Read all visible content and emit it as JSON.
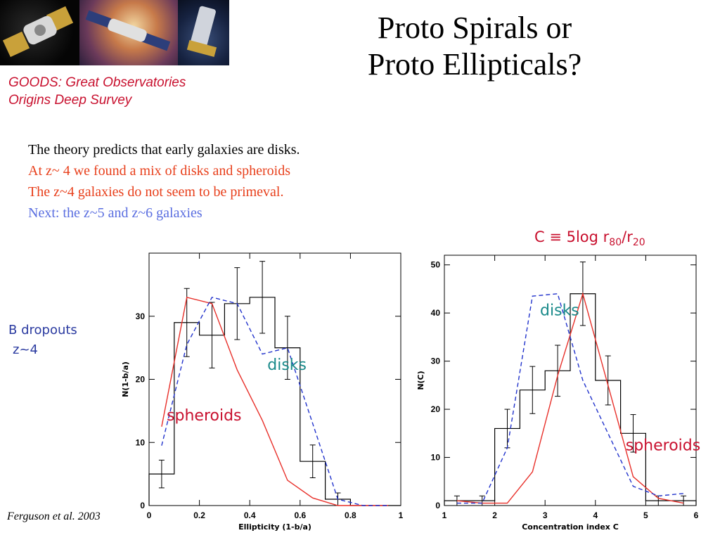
{
  "header": {
    "title_line1": "Proto Spirals or",
    "title_line2": "Proto Ellipticals?",
    "subtitle_line1": "GOODS: Great Observatories",
    "subtitle_line2": "Origins Deep Survey"
  },
  "bullets": {
    "line1": "The theory predicts that early galaxies are disks.",
    "line2": "At z~ 4 we found a mix of disks and spheroids",
    "line3": "The z~4 galaxies do not seem to be primeval.",
    "line4": "Next: the z~5 and z~6 galaxies"
  },
  "formula": {
    "prefix": "C ≡ 5log r",
    "sub1": "80",
    "mid": "/r",
    "sub2": "20"
  },
  "side_label": {
    "line1": "B dropouts",
    "line2": "z~4"
  },
  "citation": "Ferguson et al. 2003",
  "colors": {
    "histogram": "#000000",
    "spheroids": "#e8302a",
    "disks": "#2233cc",
    "annotation_disks": "#1a8a8a",
    "annotation_spheroids": "#c8102e"
  },
  "chart_data": [
    {
      "type": "histogram",
      "xlabel": "Ellipticity (1-b/a)",
      "ylabel": "N(1-b/a)",
      "xlim": [
        0,
        1
      ],
      "ylim": [
        0,
        40
      ],
      "x_ticks": [
        0,
        0.2,
        0.4,
        0.6,
        0.8,
        1
      ],
      "x_tick_labels": [
        "0",
        "0.2",
        "0.4",
        "0.6",
        "0.8",
        "1"
      ],
      "y_ticks": [
        0,
        10,
        20,
        30
      ],
      "y_tick_labels": [
        "0",
        "10",
        "20",
        "30"
      ],
      "bins": {
        "edges": [
          0,
          0.1,
          0.2,
          0.3,
          0.4,
          0.5,
          0.6,
          0.7,
          0.8,
          0.9,
          1.0
        ],
        "counts": [
          5,
          29,
          27,
          32,
          33,
          25,
          7,
          1,
          0,
          0
        ],
        "errors": [
          2.2,
          5.4,
          5.2,
          5.7,
          5.7,
          5.0,
          2.6,
          1.0,
          0,
          0
        ]
      },
      "series": [
        {
          "name": "spheroids",
          "style": "solid",
          "x": [
            0.05,
            0.15,
            0.25,
            0.35,
            0.45,
            0.55,
            0.65,
            0.75,
            0.85,
            0.95
          ],
          "y": [
            12.5,
            33,
            32,
            21.5,
            13.5,
            4,
            1.2,
            0,
            0,
            0
          ]
        },
        {
          "name": "disks",
          "style": "dashed",
          "x": [
            0.05,
            0.15,
            0.25,
            0.35,
            0.45,
            0.55,
            0.65,
            0.75,
            0.85,
            0.95
          ],
          "y": [
            9.5,
            25.5,
            33,
            32,
            24,
            25,
            13,
            1,
            0,
            0
          ]
        }
      ],
      "annotations": [
        {
          "text": "disks",
          "x": 0.47,
          "y": 21.5,
          "color_key": "annotation_disks"
        },
        {
          "text": "spheroids",
          "x": 0.07,
          "y": 13.5,
          "color_key": "annotation_spheroids"
        }
      ]
    },
    {
      "type": "histogram",
      "xlabel": "Concentration index C",
      "ylabel": "N(C)",
      "xlim": [
        1,
        6
      ],
      "ylim": [
        0,
        52
      ],
      "x_ticks": [
        1,
        2,
        3,
        4,
        5,
        6
      ],
      "x_tick_labels": [
        "1",
        "2",
        "3",
        "4",
        "5",
        "6"
      ],
      "y_ticks": [
        0,
        10,
        20,
        30,
        40,
        50
      ],
      "y_tick_labels": [
        "0",
        "10",
        "20",
        "30",
        "40",
        "50"
      ],
      "bins": {
        "edges": [
          1.0,
          1.5,
          2.0,
          2.5,
          3.0,
          3.5,
          4.0,
          4.5,
          5.0,
          5.5,
          6.0
        ],
        "counts": [
          1,
          1,
          16,
          24,
          28,
          44,
          26,
          15,
          1,
          1
        ],
        "errors": [
          1,
          1,
          4,
          4.9,
          5.3,
          6.6,
          5.1,
          3.9,
          1,
          1
        ]
      },
      "series": [
        {
          "name": "spheroids",
          "style": "solid",
          "x": [
            1.25,
            1.75,
            2.25,
            2.75,
            3.25,
            3.75,
            4.25,
            4.75,
            5.25,
            5.75
          ],
          "y": [
            1,
            0.5,
            0.5,
            7,
            27,
            44,
            25,
            6,
            1.5,
            0.5
          ]
        },
        {
          "name": "disks",
          "style": "dashed",
          "x": [
            1.25,
            1.75,
            2.25,
            2.75,
            3.25,
            3.75,
            4.25,
            4.75,
            5.25,
            5.75
          ],
          "y": [
            0.5,
            0.5,
            12,
            43.5,
            44,
            26,
            15,
            4,
            2,
            2.5
          ]
        }
      ],
      "annotations": [
        {
          "text": "disks",
          "x": 2.9,
          "y": 39.5,
          "color_key": "annotation_disks"
        },
        {
          "text": "spheroids",
          "x": 4.6,
          "y": 11.5,
          "color_key": "annotation_spheroids"
        }
      ]
    }
  ]
}
